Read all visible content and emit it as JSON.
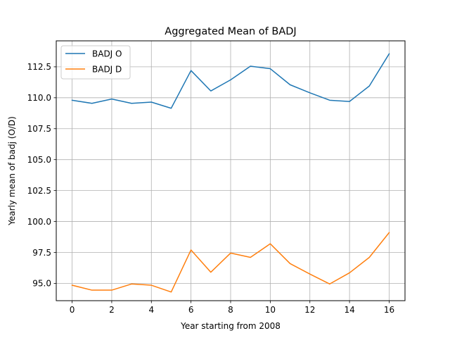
{
  "chart_data": {
    "type": "line",
    "title": "Aggregated Mean of BADJ",
    "xlabel": "Year starting from 2008",
    "ylabel": "Yearly mean of badj (O/D)",
    "x": [
      0,
      1,
      2,
      3,
      4,
      5,
      6,
      7,
      8,
      9,
      10,
      11,
      12,
      13,
      14,
      15,
      16
    ],
    "xlim": [
      -0.8,
      16.8
    ],
    "ylim": [
      93.6,
      114.6
    ],
    "xticks": [
      0,
      2,
      4,
      6,
      8,
      10,
      12,
      14,
      16
    ],
    "xtick_labels": [
      "0",
      "2",
      "4",
      "6",
      "8",
      "10",
      "12",
      "14",
      "16"
    ],
    "yticks": [
      95.0,
      97.5,
      100.0,
      102.5,
      105.0,
      107.5,
      110.0,
      112.5
    ],
    "ytick_labels": [
      "95.0",
      "97.5",
      "100.0",
      "102.5",
      "105.0",
      "107.5",
      "110.0",
      "112.5"
    ],
    "grid": true,
    "legend_position": "top-left",
    "series": [
      {
        "name": "BADJ O",
        "color": "#1f77b4",
        "values": [
          109.8,
          109.55,
          109.9,
          109.55,
          109.65,
          109.15,
          112.2,
          110.55,
          111.45,
          112.55,
          112.35,
          111.05,
          110.4,
          109.8,
          109.7,
          110.95,
          113.55
        ]
      },
      {
        "name": "BADJ D",
        "color": "#ff7f0e",
        "values": [
          94.85,
          94.45,
          94.45,
          94.95,
          94.85,
          94.3,
          97.7,
          95.9,
          97.45,
          97.1,
          98.2,
          96.6,
          95.75,
          94.95,
          95.85,
          97.1,
          99.1
        ]
      }
    ]
  }
}
